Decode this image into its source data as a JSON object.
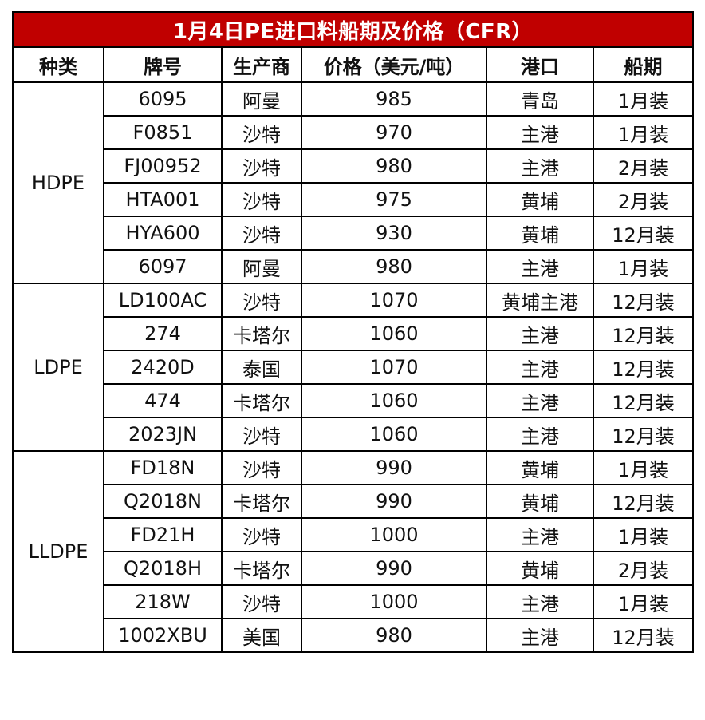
{
  "title": "1月4日PE进口料船期及价格（CFR）",
  "headers": [
    "种类",
    "牌号",
    "生产商",
    "价格（美元/吨）",
    "港口",
    "船期"
  ],
  "groups": [
    {
      "category": "HDPE",
      "rows": [
        [
          "6095",
          "阿曼",
          "985",
          "青岛",
          "1月装"
        ],
        [
          "F0851",
          "沙特",
          "970",
          "主港",
          "1月装"
        ],
        [
          "FJ00952",
          "沙特",
          "980",
          "主港",
          "2月装"
        ],
        [
          "HTA001",
          "沙特",
          "975",
          "黄埔",
          "2月装"
        ],
        [
          "HYA600",
          "沙特",
          "930",
          "黄埔",
          "12月装"
        ],
        [
          "6097",
          "阿曼",
          "980",
          "主港",
          "1月装"
        ]
      ]
    },
    {
      "category": "LDPE",
      "rows": [
        [
          "LD100AC",
          "沙特",
          "1070",
          "黄埔主港",
          "12月装"
        ],
        [
          "274",
          "卡塔尔",
          "1060",
          "主港",
          "12月装"
        ],
        [
          "2420D",
          "泰国",
          "1070",
          "主港",
          "12月装"
        ],
        [
          "474",
          "卡塔尔",
          "1060",
          "主港",
          "12月装"
        ],
        [
          "2023JN",
          "沙特",
          "1060",
          "主港",
          "12月装"
        ]
      ]
    },
    {
      "category": "LLDPE",
      "rows": [
        [
          "FD18N",
          "沙特",
          "990",
          "黄埔",
          "1月装"
        ],
        [
          "Q2018N",
          "卡塔尔",
          "990",
          "黄埔",
          "12月装"
        ],
        [
          "FD21H",
          "沙特",
          "1000",
          "主港",
          "1月装"
        ],
        [
          "Q2018H",
          "卡塔尔",
          "990",
          "黄埔",
          "2月装"
        ],
        [
          "218W",
          "沙特",
          "1000",
          "主港",
          "1月装"
        ],
        [
          "1002XBU",
          "美国",
          "980",
          "主港",
          "12月装"
        ]
      ]
    }
  ],
  "colors": {
    "title_background": "#c00000",
    "title_text": "#ffffff",
    "border": "#000000"
  }
}
